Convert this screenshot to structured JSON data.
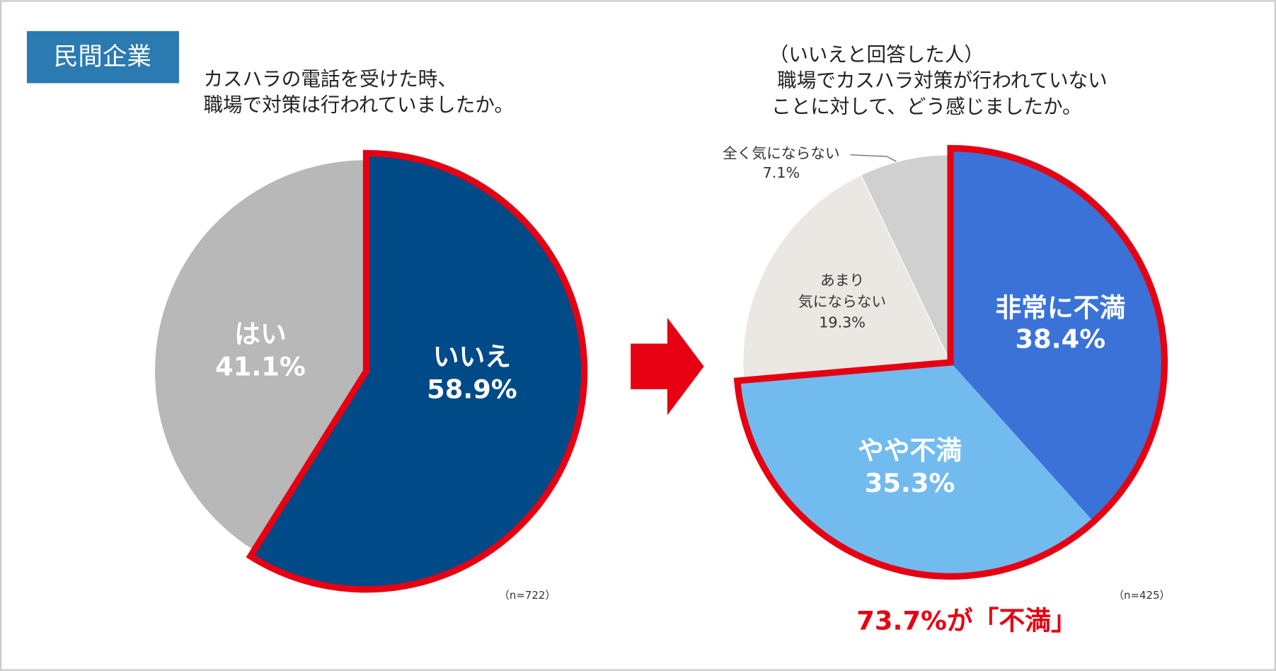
{
  "header": {
    "badge": "民間企業"
  },
  "chart_data": [
    {
      "type": "pie",
      "title": [
        "カスハラの電話を受けた時、",
        "職場で対策は行われていましたか。"
      ],
      "categories": [
        [
          "いいえ"
        ],
        [
          "はい"
        ]
      ],
      "values": [
        58.9,
        41.1
      ],
      "value_labels": [
        "58.9%",
        "41.1%"
      ],
      "colors": [
        "#004a87",
        "#b8b8b8"
      ],
      "highlight": [
        0
      ],
      "highlight_color": "#e60012",
      "note": "（n=722）"
    },
    {
      "type": "pie",
      "title": [
        "（いいえと回答した人）",
        "職場でカスハラ対策が行われていない",
        "ことに対して、どう感じましたか。"
      ],
      "categories": [
        [
          "非常に不満"
        ],
        [
          "やや不満"
        ],
        [
          "あまり",
          "気にならない"
        ],
        [
          "全く気にならない"
        ]
      ],
      "values": [
        38.4,
        35.3,
        19.3,
        7.1
      ],
      "value_labels": [
        "38.4%",
        "35.3%",
        "19.3%",
        "7.1%"
      ],
      "colors": [
        "#3a72d8",
        "#72bbee",
        "#ebe8e4",
        "#d0d0d0"
      ],
      "highlight": [
        0,
        1
      ],
      "highlight_color": "#e60012",
      "note": "（n=425）",
      "annotation": "73.7%が「不満」"
    }
  ]
}
